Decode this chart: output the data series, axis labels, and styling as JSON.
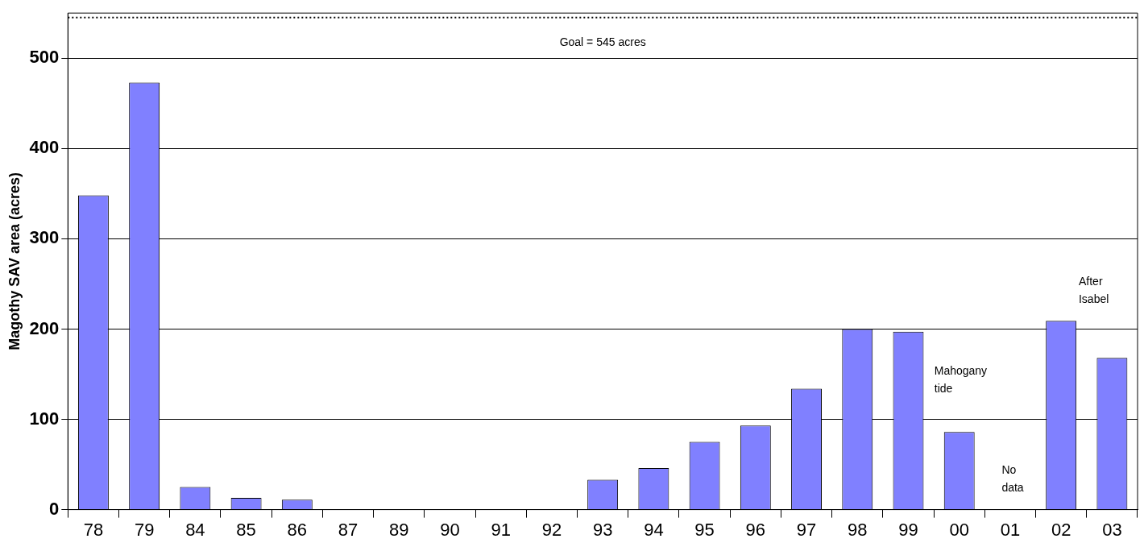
{
  "chart_data": {
    "type": "bar",
    "ylabel": "Magothy SAV area (acres)",
    "categories": [
      "78",
      "79",
      "84",
      "85",
      "86",
      "87",
      "89",
      "90",
      "91",
      "92",
      "93",
      "94",
      "95",
      "96",
      "97",
      "98",
      "99",
      "00",
      "01",
      "02",
      "03"
    ],
    "values": [
      348,
      473,
      25,
      13,
      11,
      0,
      0,
      0,
      0,
      0,
      33,
      46,
      75,
      93,
      134,
      200,
      197,
      86,
      null,
      209,
      168
    ],
    "color": "#8080ff",
    "ylim": [
      0,
      550
    ],
    "yticks": [
      0,
      100,
      200,
      300,
      400,
      500
    ],
    "grid": "y",
    "ref_lines": [
      {
        "axis": "y",
        "value": 545,
        "label": "Goal = 545 acres",
        "color": "#000000",
        "line_style": "dotted"
      }
    ],
    "annotations": [
      "Mahogany tide",
      "No data",
      "After Isabel"
    ]
  }
}
